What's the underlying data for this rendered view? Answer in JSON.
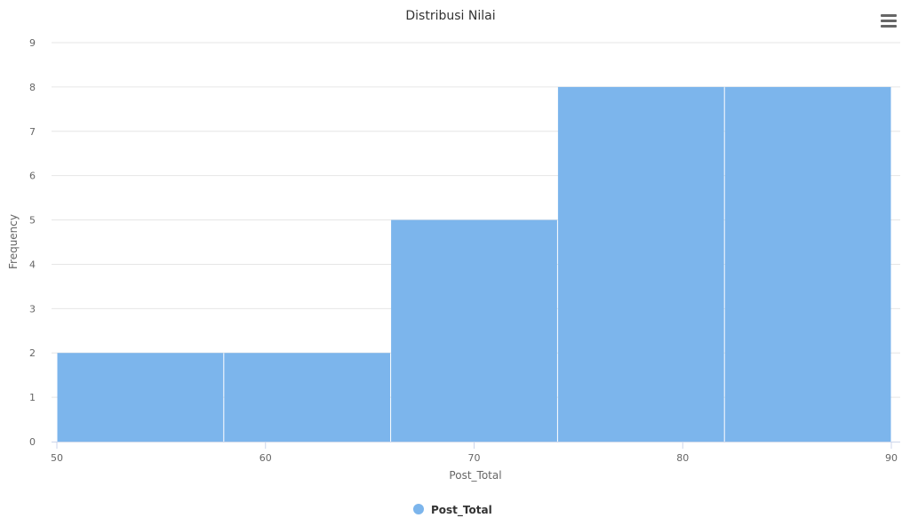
{
  "chart_data": {
    "type": "bar",
    "title": "Distribusi Nilai",
    "xlabel": "Post_Total",
    "ylabel": "Frequency",
    "bins": [
      {
        "from": 50,
        "to": 58,
        "count": 2
      },
      {
        "from": 58,
        "to": 66,
        "count": 2
      },
      {
        "from": 66,
        "to": 74,
        "count": 5
      },
      {
        "from": 74,
        "to": 82,
        "count": 8
      },
      {
        "from": 82,
        "to": 90,
        "count": 8
      }
    ],
    "xlim": [
      50,
      90
    ],
    "ylim": [
      0,
      9
    ],
    "x_ticks": [
      50,
      60,
      70,
      80,
      90
    ],
    "y_ticks": [
      0,
      1,
      2,
      3,
      4,
      5,
      6,
      7,
      8,
      9
    ],
    "grid": true,
    "legend": {
      "position": "bottom-center",
      "entries": [
        {
          "name": "Post_Total",
          "color": "#7cb5ec"
        }
      ]
    },
    "colors": {
      "bar": "#7cb5ec",
      "grid": "#e6e6e6",
      "axis": "#ccd6eb",
      "text": "#333333",
      "label": "#666666"
    }
  },
  "toolbar": {
    "menu_icon": "hamburger-menu-icon"
  }
}
